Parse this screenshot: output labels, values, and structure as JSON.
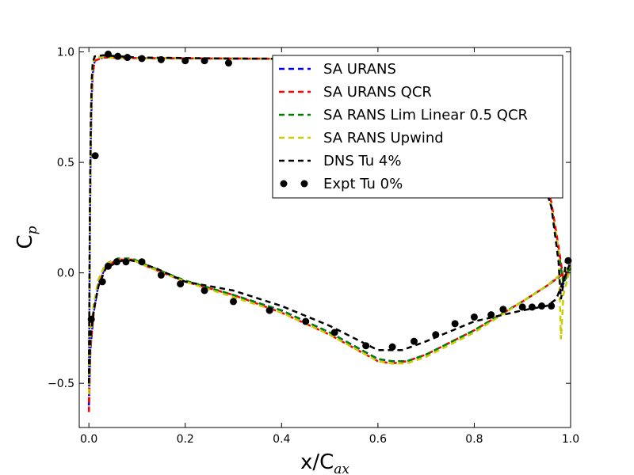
{
  "chart_data": {
    "type": "line",
    "xlabel": "x/C",
    "xlabel_sub": "ax",
    "ylabel": "C",
    "ylabel_sub": "p",
    "xlim": [
      -0.02,
      1.0
    ],
    "ylim": [
      -0.7,
      1.02
    ],
    "xticks": [
      0.0,
      0.2,
      0.4,
      0.6,
      0.8,
      1.0
    ],
    "xtick_labels": [
      "0.0",
      "0.2",
      "0.4",
      "0.6",
      "0.8",
      "1.0"
    ],
    "yticks": [
      -0.5,
      0.0,
      0.5,
      1.0
    ],
    "ytick_labels": [
      "−0.5",
      "0.0",
      "0.5",
      "1.0"
    ],
    "grid": false,
    "legend_position": "top-right",
    "series": [
      {
        "name": "SA URANS",
        "color": "#0000ff",
        "style": "dashed",
        "upper": [
          [
            0.0,
            -0.6
          ],
          [
            0.002,
            0.2
          ],
          [
            0.004,
            0.6
          ],
          [
            0.006,
            0.8
          ],
          [
            0.008,
            0.9
          ],
          [
            0.012,
            0.96
          ],
          [
            0.03,
            0.975
          ],
          [
            0.1,
            0.972
          ],
          [
            0.3,
            0.97
          ],
          [
            0.5,
            0.968
          ],
          [
            0.6,
            0.96
          ],
          [
            0.7,
            0.93
          ],
          [
            0.8,
            0.85
          ],
          [
            0.88,
            0.7
          ],
          [
            0.93,
            0.5
          ],
          [
            0.96,
            0.3
          ],
          [
            0.975,
            0.1
          ],
          [
            0.985,
            -0.05
          ],
          [
            1.0,
            0.02
          ]
        ],
        "lower": [
          [
            0.0,
            -0.6
          ],
          [
            0.003,
            -0.35
          ],
          [
            0.01,
            -0.18
          ],
          [
            0.02,
            -0.05
          ],
          [
            0.035,
            0.03
          ],
          [
            0.06,
            0.06
          ],
          [
            0.09,
            0.06
          ],
          [
            0.12,
            0.03
          ],
          [
            0.2,
            -0.04
          ],
          [
            0.3,
            -0.1
          ],
          [
            0.4,
            -0.17
          ],
          [
            0.5,
            -0.27
          ],
          [
            0.6,
            -0.39
          ],
          [
            0.63,
            -0.4
          ],
          [
            0.66,
            -0.4
          ],
          [
            0.7,
            -0.37
          ],
          [
            0.8,
            -0.26
          ],
          [
            0.9,
            -0.13
          ],
          [
            0.95,
            -0.06
          ],
          [
            1.0,
            0.02
          ]
        ]
      },
      {
        "name": "SA URANS QCR",
        "color": "#ff0000",
        "style": "dashed",
        "upper": [
          [
            0.0,
            -0.63
          ],
          [
            0.002,
            0.2
          ],
          [
            0.004,
            0.6
          ],
          [
            0.006,
            0.8
          ],
          [
            0.008,
            0.9
          ],
          [
            0.012,
            0.96
          ],
          [
            0.03,
            0.975
          ],
          [
            0.1,
            0.972
          ],
          [
            0.3,
            0.97
          ],
          [
            0.5,
            0.968
          ],
          [
            0.6,
            0.96
          ],
          [
            0.7,
            0.93
          ],
          [
            0.8,
            0.85
          ],
          [
            0.88,
            0.7
          ],
          [
            0.93,
            0.52
          ],
          [
            0.96,
            0.32
          ],
          [
            0.975,
            0.12
          ],
          [
            0.985,
            -0.03
          ],
          [
            1.0,
            0.02
          ]
        ],
        "lower": [
          [
            0.0,
            -0.63
          ],
          [
            0.003,
            -0.35
          ],
          [
            0.01,
            -0.18
          ],
          [
            0.02,
            -0.05
          ],
          [
            0.035,
            0.03
          ],
          [
            0.06,
            0.06
          ],
          [
            0.09,
            0.06
          ],
          [
            0.12,
            0.03
          ],
          [
            0.2,
            -0.04
          ],
          [
            0.3,
            -0.1
          ],
          [
            0.4,
            -0.18
          ],
          [
            0.5,
            -0.28
          ],
          [
            0.6,
            -0.4
          ],
          [
            0.63,
            -0.41
          ],
          [
            0.66,
            -0.4
          ],
          [
            0.7,
            -0.37
          ],
          [
            0.8,
            -0.26
          ],
          [
            0.9,
            -0.13
          ],
          [
            0.95,
            -0.06
          ],
          [
            1.0,
            0.02
          ]
        ]
      },
      {
        "name": "SA RANS Lim Linear 0.5 QCR",
        "color": "#008000",
        "style": "dashed",
        "upper": [
          [
            0.0,
            -0.55
          ],
          [
            0.002,
            0.25
          ],
          [
            0.004,
            0.65
          ],
          [
            0.006,
            0.85
          ],
          [
            0.008,
            0.93
          ],
          [
            0.012,
            0.98
          ],
          [
            0.03,
            0.975
          ],
          [
            0.1,
            0.972
          ],
          [
            0.3,
            0.97
          ],
          [
            0.5,
            0.968
          ],
          [
            0.6,
            0.96
          ],
          [
            0.7,
            0.93
          ],
          [
            0.8,
            0.85
          ],
          [
            0.88,
            0.7
          ],
          [
            0.93,
            0.5
          ],
          [
            0.96,
            0.3
          ],
          [
            0.975,
            0.1
          ],
          [
            0.985,
            -0.05
          ],
          [
            1.0,
            0.03
          ]
        ],
        "lower": [
          [
            0.0,
            -0.55
          ],
          [
            0.003,
            -0.3
          ],
          [
            0.01,
            -0.15
          ],
          [
            0.02,
            -0.03
          ],
          [
            0.035,
            0.04
          ],
          [
            0.06,
            0.065
          ],
          [
            0.09,
            0.065
          ],
          [
            0.12,
            0.035
          ],
          [
            0.2,
            -0.035
          ],
          [
            0.3,
            -0.1
          ],
          [
            0.4,
            -0.17
          ],
          [
            0.5,
            -0.27
          ],
          [
            0.6,
            -0.39
          ],
          [
            0.63,
            -0.4
          ],
          [
            0.66,
            -0.4
          ],
          [
            0.7,
            -0.37
          ],
          [
            0.8,
            -0.26
          ],
          [
            0.9,
            -0.13
          ],
          [
            0.95,
            -0.06
          ],
          [
            1.0,
            0.03
          ]
        ]
      },
      {
        "name": "SA RANS Upwind",
        "color": "#cccc00",
        "style": "dashed",
        "upper": [
          [
            0.0,
            -0.55
          ],
          [
            0.002,
            0.25
          ],
          [
            0.004,
            0.65
          ],
          [
            0.006,
            0.85
          ],
          [
            0.008,
            0.93
          ],
          [
            0.012,
            0.98
          ],
          [
            0.03,
            0.975
          ],
          [
            0.1,
            0.972
          ],
          [
            0.3,
            0.97
          ],
          [
            0.5,
            0.968
          ],
          [
            0.6,
            0.96
          ],
          [
            0.7,
            0.93
          ],
          [
            0.8,
            0.85
          ],
          [
            0.88,
            0.7
          ],
          [
            0.93,
            0.5
          ],
          [
            0.96,
            0.3
          ],
          [
            0.975,
            0.1
          ],
          [
            0.98,
            -0.3
          ],
          [
            0.985,
            -0.1
          ],
          [
            1.0,
            0.03
          ]
        ],
        "lower": [
          [
            0.0,
            -0.55
          ],
          [
            0.003,
            -0.3
          ],
          [
            0.01,
            -0.15
          ],
          [
            0.02,
            -0.03
          ],
          [
            0.035,
            0.04
          ],
          [
            0.06,
            0.06
          ],
          [
            0.09,
            0.06
          ],
          [
            0.12,
            0.03
          ],
          [
            0.2,
            -0.04
          ],
          [
            0.3,
            -0.11
          ],
          [
            0.4,
            -0.18
          ],
          [
            0.5,
            -0.28
          ],
          [
            0.6,
            -0.4
          ],
          [
            0.63,
            -0.41
          ],
          [
            0.66,
            -0.41
          ],
          [
            0.7,
            -0.38
          ],
          [
            0.8,
            -0.27
          ],
          [
            0.9,
            -0.13
          ],
          [
            0.95,
            -0.06
          ],
          [
            1.0,
            0.03
          ]
        ]
      },
      {
        "name": "DNS Tu 4%",
        "color": "#000000",
        "style": "dashed",
        "upper": [
          [
            0.0,
            -0.5
          ],
          [
            0.002,
            0.3
          ],
          [
            0.004,
            0.7
          ],
          [
            0.006,
            0.88
          ],
          [
            0.008,
            0.95
          ],
          [
            0.012,
            0.98
          ],
          [
            0.03,
            0.985
          ],
          [
            0.1,
            0.975
          ],
          [
            0.3,
            0.97
          ],
          [
            0.5,
            0.968
          ],
          [
            0.6,
            0.96
          ],
          [
            0.7,
            0.93
          ],
          [
            0.8,
            0.85
          ],
          [
            0.88,
            0.7
          ],
          [
            0.93,
            0.5
          ],
          [
            0.96,
            0.3
          ],
          [
            0.975,
            0.05
          ],
          [
            0.98,
            -0.12
          ],
          [
            0.985,
            -0.05
          ],
          [
            0.99,
            0.05
          ],
          [
            1.0,
            0.05
          ]
        ],
        "lower": [
          [
            0.0,
            -0.5
          ],
          [
            0.003,
            -0.3
          ],
          [
            0.01,
            -0.17
          ],
          [
            0.02,
            -0.06
          ],
          [
            0.035,
            0.02
          ],
          [
            0.06,
            0.05
          ],
          [
            0.08,
            0.06
          ],
          [
            0.1,
            0.05
          ],
          [
            0.14,
            0.02
          ],
          [
            0.2,
            -0.04
          ],
          [
            0.3,
            -0.08
          ],
          [
            0.4,
            -0.15
          ],
          [
            0.5,
            -0.24
          ],
          [
            0.6,
            -0.35
          ],
          [
            0.65,
            -0.35
          ],
          [
            0.7,
            -0.31
          ],
          [
            0.8,
            -0.22
          ],
          [
            0.9,
            -0.17
          ],
          [
            0.95,
            -0.15
          ],
          [
            0.97,
            -0.12
          ],
          [
            1.0,
            0.05
          ]
        ]
      },
      {
        "name": "Expt Tu 0%",
        "color": "#000000",
        "style": "markers",
        "points": [
          [
            0.013,
            0.53
          ],
          [
            0.04,
            0.99
          ],
          [
            0.06,
            0.98
          ],
          [
            0.08,
            0.975
          ],
          [
            0.11,
            0.97
          ],
          [
            0.15,
            0.965
          ],
          [
            0.2,
            0.96
          ],
          [
            0.24,
            0.96
          ],
          [
            0.29,
            0.95
          ],
          [
            0.005,
            -0.21
          ],
          [
            0.028,
            -0.04
          ],
          [
            0.04,
            0.03
          ],
          [
            0.058,
            0.05
          ],
          [
            0.077,
            0.05
          ],
          [
            0.11,
            0.05
          ],
          [
            0.15,
            -0.01
          ],
          [
            0.19,
            -0.05
          ],
          [
            0.24,
            -0.08
          ],
          [
            0.3,
            -0.13
          ],
          [
            0.375,
            -0.17
          ],
          [
            0.45,
            -0.22
          ],
          [
            0.51,
            -0.27
          ],
          [
            0.575,
            -0.33
          ],
          [
            0.63,
            -0.335
          ],
          [
            0.675,
            -0.31
          ],
          [
            0.72,
            -0.28
          ],
          [
            0.76,
            -0.23
          ],
          [
            0.8,
            -0.2
          ],
          [
            0.835,
            -0.19
          ],
          [
            0.86,
            -0.165
          ],
          [
            0.9,
            -0.155
          ],
          [
            0.92,
            -0.155
          ],
          [
            0.94,
            -0.15
          ],
          [
            0.96,
            -0.15
          ],
          [
            0.995,
            0.055
          ]
        ]
      }
    ]
  }
}
